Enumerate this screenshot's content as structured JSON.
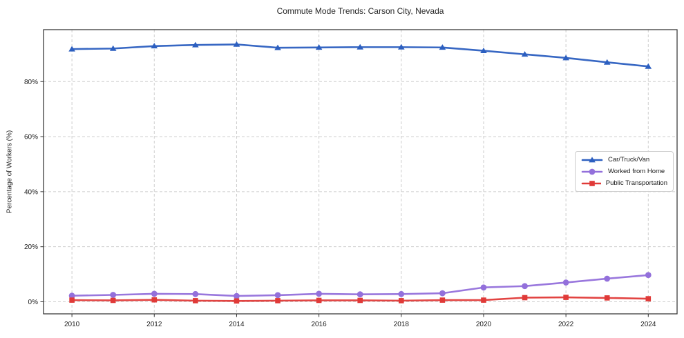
{
  "chart_data": {
    "type": "line",
    "title": "Commute Mode Trends: Carson City, Nevada",
    "xlabel": "",
    "ylabel": "Percentage of Workers (%)",
    "x": [
      2010,
      2011,
      2012,
      2013,
      2014,
      2015,
      2016,
      2017,
      2018,
      2019,
      2020,
      2021,
      2022,
      2023,
      2024
    ],
    "xticks": [
      2010,
      2012,
      2014,
      2016,
      2018,
      2020,
      2022,
      2024
    ],
    "yticks": [
      0,
      20,
      40,
      60,
      80
    ],
    "ytick_suffix": "%",
    "xlim": [
      2009.31,
      2024.7
    ],
    "ylim": [
      -4.39,
      98.86
    ],
    "grid": true,
    "grid_style": "dashed",
    "legend_position": "center-right",
    "series": [
      {
        "name": "Car/Truck/Van",
        "color": "#2c5fc0",
        "marker": "triangle",
        "values": [
          91.8,
          92.0,
          92.9,
          93.3,
          93.5,
          92.3,
          92.4,
          92.5,
          92.5,
          92.4,
          91.2,
          89.9,
          88.6,
          87.0,
          85.5
        ]
      },
      {
        "name": "Worked from Home",
        "color": "#9370db",
        "marker": "circle",
        "values": [
          2.2,
          2.5,
          2.9,
          2.8,
          2.1,
          2.4,
          2.9,
          2.7,
          2.8,
          3.1,
          5.2,
          5.7,
          7.0,
          8.4,
          9.7
        ]
      },
      {
        "name": "Public Transportation",
        "color": "#e03a38",
        "marker": "square",
        "values": [
          0.6,
          0.5,
          0.7,
          0.4,
          0.3,
          0.4,
          0.5,
          0.5,
          0.4,
          0.6,
          0.6,
          1.5,
          1.6,
          1.4,
          1.1
        ]
      }
    ]
  }
}
